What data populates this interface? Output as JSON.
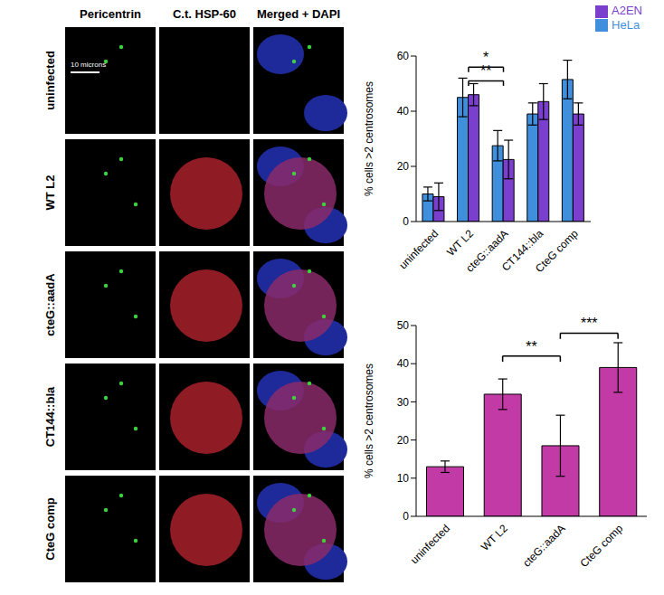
{
  "image_panels": {
    "columns": [
      "Pericentrin",
      "C.t. HSP-60",
      "Merged + DAPI"
    ],
    "rows": [
      "uninfected",
      "WT L2",
      "cteG::aadA",
      "CT144::bla",
      "CteG comp"
    ],
    "scale_bar": "10 microns"
  },
  "chart_data": [
    {
      "type": "bar",
      "categories": [
        "uninfected",
        "WT L2",
        "cteG::aadA",
        "CT144::bla",
        "CteG comp"
      ],
      "series": [
        {
          "name": "HeLa",
          "color": "#3f8fdc",
          "values": [
            10,
            45,
            27.5,
            39,
            51.5
          ],
          "errors": [
            2.5,
            7,
            5.5,
            4,
            7
          ]
        },
        {
          "name": "A2EN",
          "color": "#7a3fcc",
          "values": [
            9,
            46,
            22.5,
            43.5,
            39
          ],
          "errors": [
            5,
            4,
            7,
            6.5,
            4
          ]
        }
      ],
      "y_label": "% cells >2 centrosomes",
      "ylim": [
        0,
        60
      ],
      "yticks": [
        0,
        20,
        40,
        60
      ],
      "legend": "upper right",
      "annotations": [
        {
          "text": "*",
          "from": "WT L2",
          "to": "cteG::aadA",
          "y": 56
        },
        {
          "text": "**",
          "from": "WT L2",
          "to": "cteG::aadA",
          "y": 51
        }
      ]
    },
    {
      "type": "bar",
      "categories": [
        "uninfected",
        "WT L2",
        "cteG::aadA",
        "CteG comp"
      ],
      "values": [
        13,
        32,
        18.5,
        39
      ],
      "errors": [
        1.5,
        4,
        8,
        6.5
      ],
      "color": "#c23aa6",
      "y_label": "% cells >2 centrosomes",
      "ylim": [
        0,
        50
      ],
      "yticks": [
        0,
        10,
        20,
        30,
        40,
        50
      ],
      "annotations": [
        {
          "text": "**",
          "from": "WT L2",
          "to": "cteG::aadA",
          "y": 42
        },
        {
          "text": "***",
          "from": "cteG::aadA",
          "to": "CteG comp",
          "y": 48
        }
      ]
    }
  ]
}
